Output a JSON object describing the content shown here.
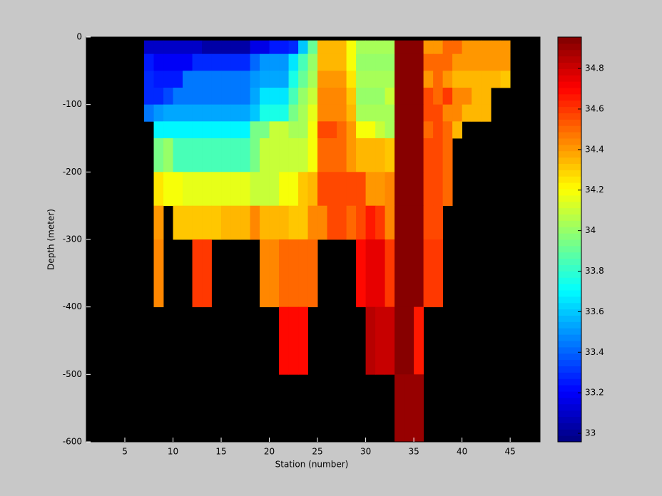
{
  "chart_data": {
    "type": "heatmap",
    "xlabel": "Station (number)",
    "ylabel": "Depth (meter)",
    "colormap": "jet",
    "xlim": [
      1,
      48.1
    ],
    "ylim": [
      -600,
      0
    ],
    "xticks": [
      5,
      10,
      15,
      20,
      25,
      30,
      35,
      40,
      45
    ],
    "yticks": [
      0,
      -100,
      -200,
      -300,
      -400,
      -500,
      -600
    ],
    "clim": [
      32.958,
      34.955
    ],
    "cticks": [
      33,
      33.2,
      33.4,
      33.6,
      33.8,
      34,
      34.2,
      34.4,
      34.6,
      34.8
    ],
    "x": [
      7,
      8,
      9,
      10,
      11,
      12,
      13,
      14,
      15,
      16,
      17,
      18,
      19,
      20,
      21,
      22,
      23,
      24,
      25,
      26,
      27,
      28,
      29,
      30,
      31,
      32,
      33,
      34,
      35,
      36,
      37,
      38,
      39,
      40,
      41,
      42,
      43,
      44,
      45
    ],
    "y": [
      -5,
      -25,
      -50,
      -75,
      -100,
      -125,
      -150,
      -200,
      -250,
      -300,
      -400,
      -500,
      -600
    ],
    "z": [
      [
        33.1,
        33.1,
        33.1,
        33.1,
        33.1,
        33.1,
        33.05,
        33.05,
        33.05,
        33.05,
        33.05,
        33.15,
        33.15,
        33.25,
        33.25,
        33.3,
        33.6,
        33.9,
        34.35,
        34.35,
        34.35,
        34.2,
        34.05,
        34.05,
        34.05,
        34.05,
        34.95,
        34.95,
        34.95,
        34.4,
        34.4,
        34.5,
        34.5,
        34.4,
        34.4,
        34.4,
        34.4,
        34.4
      ],
      [
        33.25,
        33.2,
        33.2,
        33.2,
        33.2,
        33.3,
        33.3,
        33.3,
        33.3,
        33.3,
        33.3,
        33.4,
        33.5,
        33.5,
        33.5,
        33.65,
        33.85,
        34.0,
        34.35,
        34.35,
        34.35,
        34.2,
        34.0,
        34.0,
        34.0,
        34.0,
        34.95,
        34.95,
        34.95,
        34.5,
        34.5,
        34.5,
        34.4,
        34.4,
        34.4,
        34.4,
        34.4,
        34.4
      ],
      [
        33.3,
        33.25,
        33.25,
        33.25,
        33.45,
        33.45,
        33.45,
        33.45,
        33.45,
        33.45,
        33.45,
        33.5,
        33.55,
        33.55,
        33.55,
        33.75,
        33.9,
        34.05,
        34.4,
        34.4,
        34.4,
        34.25,
        34.05,
        34.05,
        34.05,
        34.05,
        34.95,
        34.95,
        34.95,
        34.4,
        34.5,
        34.4,
        34.35,
        34.35,
        34.35,
        34.35,
        34.35,
        34.3
      ],
      [
        33.3,
        33.3,
        33.35,
        33.45,
        33.45,
        33.45,
        33.45,
        33.45,
        33.45,
        33.45,
        33.45,
        33.55,
        33.65,
        33.65,
        33.65,
        33.85,
        34.0,
        34.1,
        34.45,
        34.45,
        34.45,
        34.3,
        34.0,
        34.0,
        34.0,
        34.1,
        34.95,
        34.95,
        34.95,
        34.55,
        34.5,
        34.6,
        34.45,
        34.45,
        34.35,
        34.35,
        null,
        null
      ],
      [
        33.45,
        33.5,
        33.55,
        33.55,
        33.55,
        33.55,
        33.55,
        33.55,
        33.55,
        33.55,
        33.55,
        33.6,
        33.75,
        33.75,
        33.75,
        33.95,
        34.05,
        34.15,
        34.45,
        34.45,
        34.45,
        34.35,
        34.05,
        34.05,
        34.05,
        34.05,
        34.95,
        34.95,
        34.95,
        34.55,
        34.55,
        34.45,
        34.45,
        34.35,
        34.35,
        34.35,
        null,
        null
      ],
      [
        null,
        33.7,
        33.7,
        33.7,
        33.7,
        33.7,
        33.7,
        33.7,
        33.7,
        33.7,
        33.7,
        33.95,
        33.95,
        34.1,
        34.1,
        34.05,
        34.05,
        34.2,
        34.55,
        34.55,
        34.5,
        34.4,
        34.2,
        34.2,
        34.1,
        34.05,
        34.95,
        34.95,
        34.95,
        34.5,
        34.55,
        34.5,
        34.35,
        null,
        null,
        null,
        null,
        null
      ],
      [
        null,
        33.95,
        34.0,
        33.85,
        33.85,
        33.85,
        33.85,
        33.85,
        33.85,
        33.85,
        33.85,
        33.95,
        34.1,
        34.1,
        34.1,
        34.1,
        34.1,
        34.2,
        34.5,
        34.5,
        34.5,
        34.4,
        34.35,
        34.35,
        34.35,
        34.3,
        34.95,
        34.95,
        34.95,
        34.55,
        34.55,
        34.5,
        null,
        null,
        null,
        null,
        null,
        null
      ],
      [
        null,
        34.25,
        34.2,
        34.2,
        34.15,
        34.15,
        34.15,
        34.15,
        34.15,
        34.15,
        34.15,
        34.1,
        34.1,
        34.1,
        34.2,
        34.2,
        34.3,
        34.35,
        34.55,
        34.55,
        34.55,
        34.55,
        34.55,
        34.4,
        34.4,
        34.45,
        34.95,
        34.95,
        34.95,
        34.55,
        34.55,
        34.5,
        null,
        null,
        null,
        null,
        null,
        null
      ],
      [
        null,
        34.4,
        null,
        34.3,
        34.3,
        34.3,
        34.3,
        34.3,
        34.35,
        34.35,
        34.35,
        34.45,
        34.35,
        34.35,
        34.35,
        34.3,
        34.3,
        34.45,
        34.45,
        34.55,
        34.55,
        34.5,
        34.55,
        34.65,
        34.6,
        34.45,
        34.95,
        34.95,
        34.95,
        34.55,
        34.55,
        null,
        null,
        null,
        null,
        null,
        null,
        null
      ],
      [
        null,
        34.45,
        null,
        null,
        null,
        34.6,
        34.6,
        null,
        null,
        null,
        null,
        null,
        34.45,
        34.45,
        34.5,
        34.5,
        34.5,
        34.5,
        null,
        null,
        null,
        null,
        34.7,
        34.75,
        34.75,
        34.6,
        34.95,
        34.95,
        34.95,
        34.6,
        34.6,
        null,
        null,
        null,
        null,
        null,
        null,
        null
      ],
      [
        null,
        null,
        null,
        null,
        null,
        null,
        null,
        null,
        null,
        null,
        null,
        null,
        null,
        null,
        34.7,
        34.7,
        34.7,
        null,
        null,
        null,
        null,
        null,
        null,
        34.85,
        34.8,
        34.8,
        34.95,
        34.95,
        34.65,
        null,
        null,
        null,
        null,
        null,
        null,
        null,
        null,
        null
      ],
      [
        null,
        null,
        null,
        null,
        null,
        null,
        null,
        null,
        null,
        null,
        null,
        null,
        null,
        null,
        null,
        null,
        null,
        null,
        null,
        null,
        null,
        null,
        null,
        null,
        null,
        null,
        34.9,
        34.9,
        34.9,
        null,
        null,
        null,
        null,
        null,
        null,
        null,
        null,
        null
      ]
    ]
  }
}
